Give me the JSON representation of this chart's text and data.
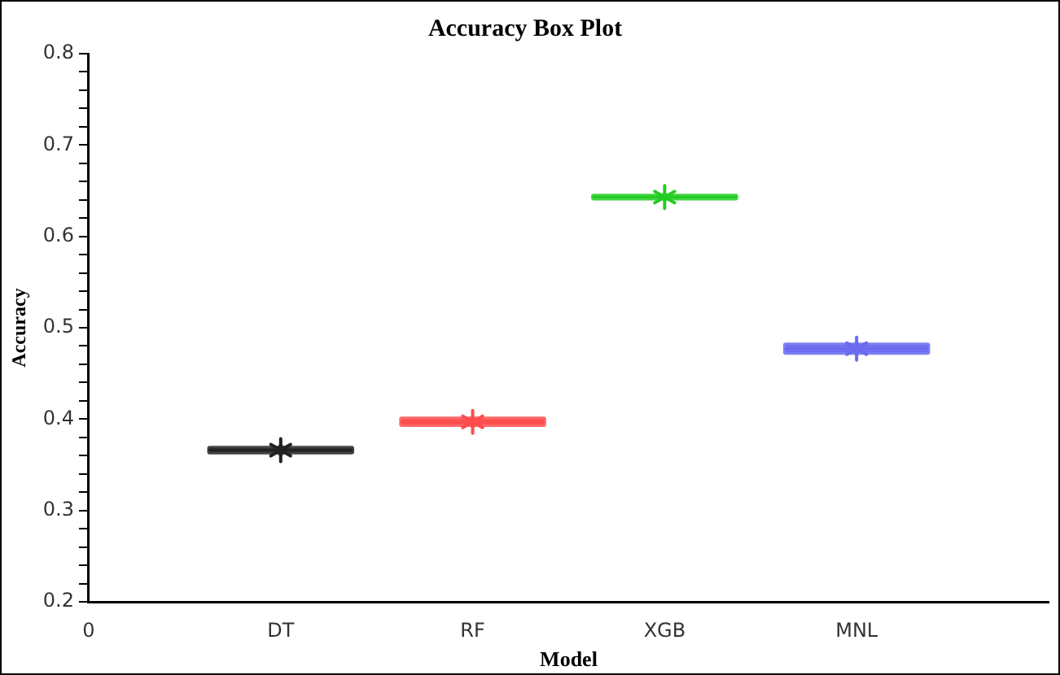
{
  "chart_data": {
    "type": "box",
    "title": "Accuracy Box Plot",
    "xlabel": "Model",
    "ylabel": "Accuracy",
    "categories": [
      "0",
      "DT",
      "RF",
      "XGB",
      "MNL",
      null
    ],
    "boxes": [
      null,
      {
        "low": 0.362,
        "q1": 0.364,
        "median": 0.366,
        "q3": 0.368,
        "high": 0.37,
        "mean": 0.366
      },
      {
        "low": 0.393,
        "q1": 0.394,
        "median": 0.397,
        "q3": 0.4,
        "high": 0.401,
        "mean": 0.397
      },
      {
        "low": 0.641,
        "q1": 0.642,
        "median": 0.643,
        "q3": 0.644,
        "high": 0.645,
        "mean": 0.643
      },
      {
        "low": 0.472,
        "q1": 0.473,
        "median": 0.477,
        "q3": 0.481,
        "high": 0.482,
        "mean": 0.477
      },
      null
    ],
    "colors": [
      null,
      "#222222",
      "#ff4d4d",
      "#22cc22",
      "#6a6af0",
      null
    ],
    "ylim": [
      0.2,
      0.8
    ],
    "yticks": [
      0.2,
      {
        "value": 0.22,
        "label": null
      },
      {
        "value": 0.24,
        "label": null
      },
      {
        "value": 0.26,
        "label": null
      },
      {
        "value": 0.28,
        "label": null
      },
      0.3,
      {
        "value": 0.32,
        "label": null
      },
      {
        "value": 0.34,
        "label": null
      },
      {
        "value": 0.36,
        "label": null
      },
      {
        "value": 0.38,
        "label": null
      },
      0.4,
      {
        "value": 0.42,
        "label": null
      },
      {
        "value": 0.44,
        "label": null
      },
      {
        "value": 0.46,
        "label": null
      },
      {
        "value": 0.48,
        "label": null
      },
      0.5,
      {
        "value": 0.52,
        "label": null
      },
      {
        "value": 0.54,
        "label": null
      },
      {
        "value": 0.56,
        "label": null
      },
      {
        "value": 0.58,
        "label": null
      },
      0.6,
      {
        "value": 0.62,
        "label": null
      },
      {
        "value": 0.64,
        "label": null
      },
      {
        "value": 0.66,
        "label": null
      },
      {
        "value": 0.68,
        "label": null
      },
      0.7,
      {
        "value": 0.72,
        "label": null
      },
      {
        "value": 0.74,
        "label": null
      },
      {
        "value": 0.76,
        "label": null
      },
      {
        "value": 0.78,
        "label": null
      },
      0.8
    ],
    "grid": false,
    "marker": "star"
  }
}
